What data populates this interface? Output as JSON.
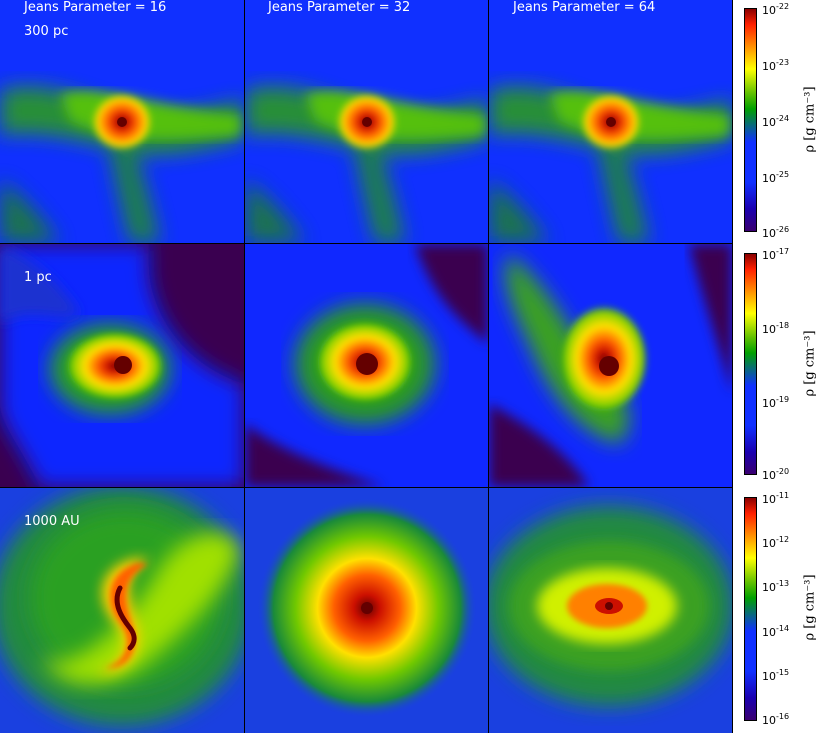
{
  "columns": [
    {
      "title": "Jeans Parameter = 16"
    },
    {
      "title": "Jeans Parameter = 32"
    },
    {
      "title": "Jeans Parameter = 64"
    }
  ],
  "rows": [
    {
      "scale_label": "300 pc",
      "colorbar": {
        "label": "ρ [g cm⁻³]",
        "ticks": [
          {
            "base": "10",
            "exp": "-22"
          },
          {
            "base": "10",
            "exp": "-23"
          },
          {
            "base": "10",
            "exp": "-24"
          },
          {
            "base": "10",
            "exp": "-25"
          },
          {
            "base": "10",
            "exp": "-26"
          }
        ]
      }
    },
    {
      "scale_label": "1 pc",
      "colorbar": {
        "label": "ρ [g cm⁻³]",
        "ticks": [
          {
            "base": "10",
            "exp": "-17"
          },
          {
            "base": "10",
            "exp": "-18"
          },
          {
            "base": "10",
            "exp": "-19"
          },
          {
            "base": "10",
            "exp": "-20"
          }
        ]
      }
    },
    {
      "scale_label": "1000 AU",
      "colorbar": {
        "label": "ρ [g cm⁻³]",
        "ticks": [
          {
            "base": "10",
            "exp": "-11"
          },
          {
            "base": "10",
            "exp": "-12"
          },
          {
            "base": "10",
            "exp": "-13"
          },
          {
            "base": "10",
            "exp": "-14"
          },
          {
            "base": "10",
            "exp": "-15"
          },
          {
            "base": "10",
            "exp": "-16"
          }
        ]
      }
    }
  ],
  "colormap": {
    "name": "spectral",
    "stops": [
      "#2a005a",
      "#1a00b0",
      "#0a2cff",
      "#00a000",
      "#ffff00",
      "#ff6000",
      "#cc0000",
      "#640000"
    ]
  }
}
